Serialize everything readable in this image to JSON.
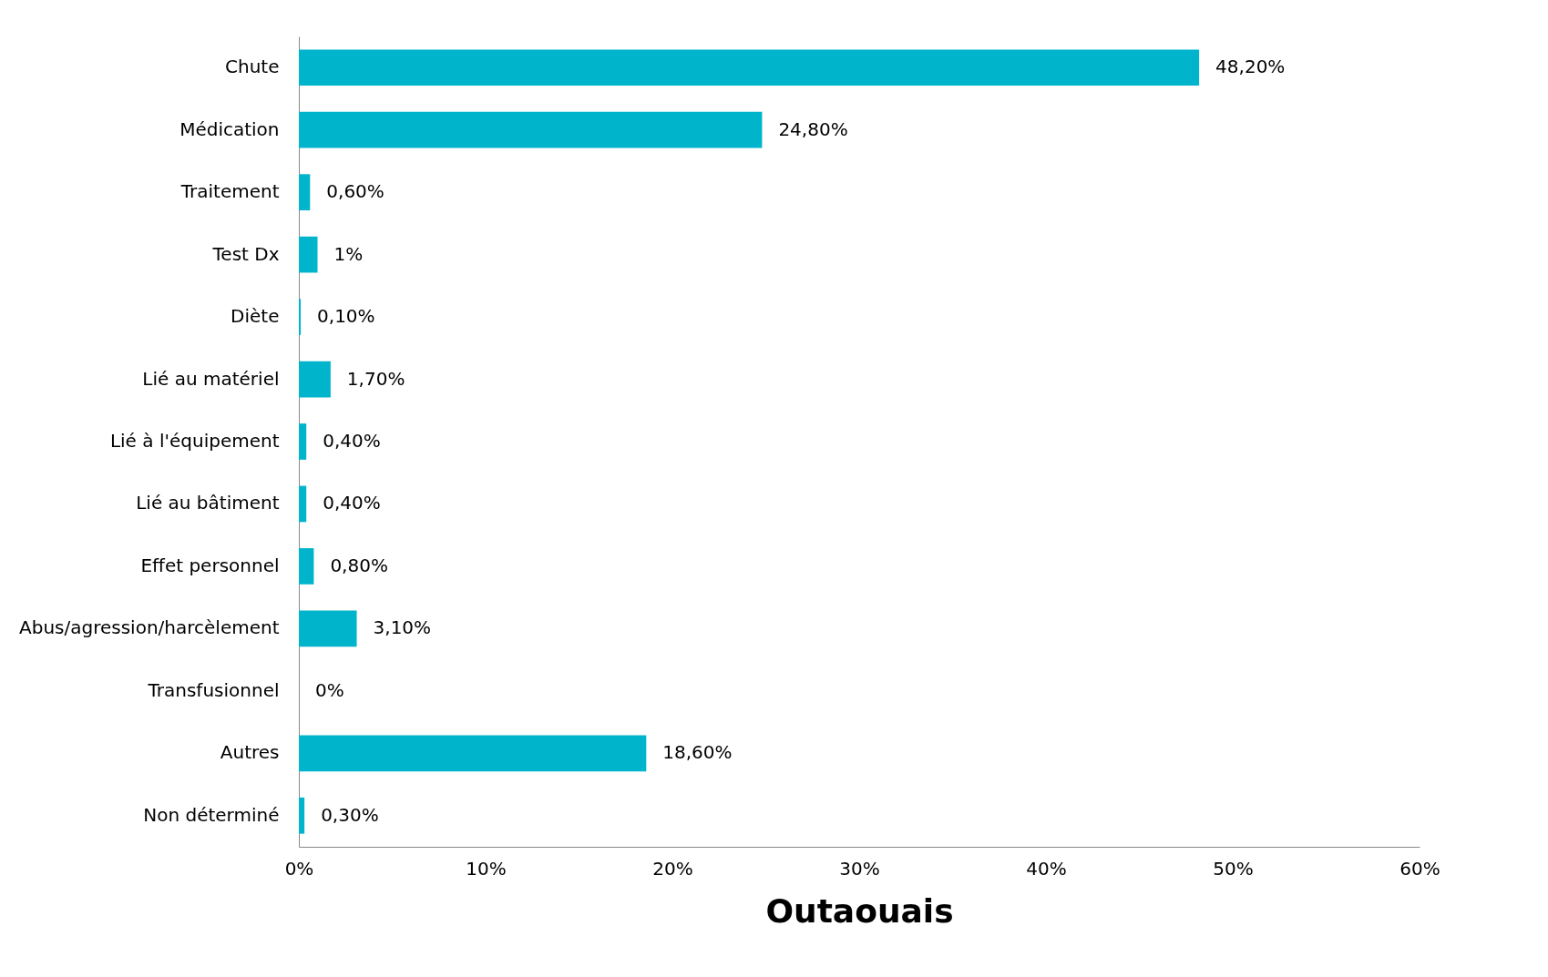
{
  "chart_data": {
    "type": "bar",
    "orientation": "horizontal",
    "xlabel": "Outaouais",
    "categories": [
      "Chute",
      "Médication",
      "Traitement",
      "Test Dx",
      "Diète",
      "Lié au matériel",
      "Lié à l'équipement",
      "Lié au bâtiment",
      "Effet personnel",
      "Abus/agression/harcèlement",
      "Transfusionnel",
      "Autres",
      "Non déterminé"
    ],
    "values": [
      48.2,
      24.8,
      0.6,
      1,
      0.1,
      1.7,
      0.4,
      0.4,
      0.8,
      3.1,
      0,
      18.6,
      0.3
    ],
    "value_labels": [
      "48,20%",
      "24,80%",
      "0,60%",
      "1%",
      "0,10%",
      "1,70%",
      "0,40%",
      "0,40%",
      "0,80%",
      "3,10%",
      "0%",
      "18,60%",
      "0,30%"
    ],
    "color": "#00b4cc",
    "xlim": [
      0,
      60
    ],
    "xticks": [
      {
        "value": 0,
        "label": "0%"
      },
      {
        "value": 10,
        "label": "10%"
      },
      {
        "value": 20,
        "label": "20%"
      },
      {
        "value": 30,
        "label": "30%"
      },
      {
        "value": 40,
        "label": "40%"
      },
      {
        "value": 50,
        "label": "50%"
      },
      {
        "value": 60,
        "label": "60%"
      }
    ],
    "grid": false
  }
}
